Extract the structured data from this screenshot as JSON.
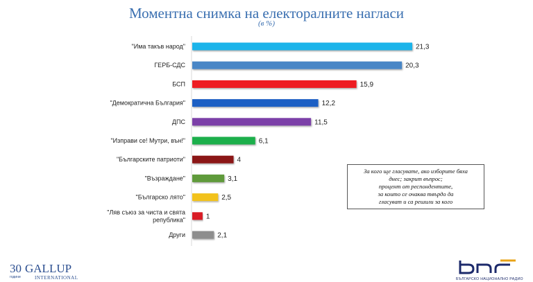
{
  "header": {
    "title": "Моментна снимка на електоралните нагласи",
    "subtitle": "(в %)"
  },
  "note": {
    "lines": [
      "За кого ще гласувате, ако изборите бяха",
      "днес; закрит въпрос;",
      "процент от респондентите,",
      "за които се очаква твърдо да",
      "гласуват и са решили за кого"
    ]
  },
  "logos": {
    "gallup": {
      "number": "30",
      "word": "GALLUP",
      "years": "години",
      "sub": "INTERNATIONAL"
    },
    "bnr": {
      "sub": "БЪЛГАРСКО НАЦИОНАЛНО РАДИО"
    }
  },
  "chart_data": {
    "type": "bar",
    "orientation": "horizontal",
    "title": "Моментна снимка на електоралните нагласи",
    "subtitle": "(в %)",
    "categories": [
      "\"Има такъв народ\"",
      "ГЕРБ-СДС",
      "БСП",
      "\"Демократична България\"",
      "ДПС",
      "\"Изправи се! Мутри, вън!\"",
      "\"Българските патриоти\"",
      "\"Възраждане\"",
      "\"Българско лято\"",
      "\"Ляв съюз за чиста и свята република\"",
      "Други"
    ],
    "category_lines": [
      [
        "\"Има такъв народ\""
      ],
      [
        "ГЕРБ-СДС"
      ],
      [
        "БСП"
      ],
      [
        "\"Демократична България\""
      ],
      [
        "ДПС"
      ],
      [
        "\"Изправи се! Мутри, вън!\""
      ],
      [
        "\"Българските патриоти\""
      ],
      [
        "\"Възраждане\""
      ],
      [
        "\"Българско лято\""
      ],
      [
        "\"Ляв съюз за чиста и свята",
        "република\""
      ],
      [
        "Други"
      ]
    ],
    "values": [
      21.3,
      20.3,
      15.9,
      12.2,
      11.5,
      6.1,
      4,
      3.1,
      2.5,
      1,
      2.1
    ],
    "value_labels": [
      "21,3",
      "20,3",
      "15,9",
      "12,2",
      "11,5",
      "6,1",
      "4",
      "3,1",
      "2,5",
      "1",
      "2,1"
    ],
    "colors": [
      "#1fb4ea",
      "#4a86c6",
      "#ee1c24",
      "#1f5fc4",
      "#7b3fa8",
      "#1faf4b",
      "#8b1414",
      "#5e9a3a",
      "#f2c21b",
      "#d91f26",
      "#8e8e8e"
    ],
    "xlim": [
      0,
      21.3
    ],
    "grid": false,
    "legend": "none"
  }
}
